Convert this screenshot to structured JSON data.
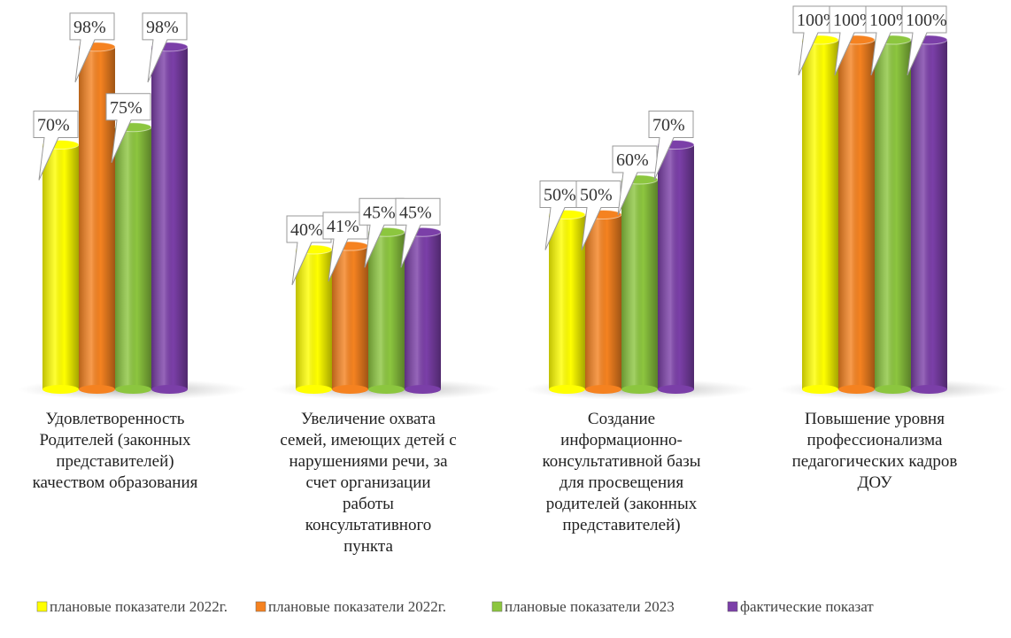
{
  "chart_data": {
    "type": "bar3d",
    "categories": [
      "Удовлетворенность\nРодителей (законных\nпредставителей)\nкачеством образования",
      "Увеличение охвата\nсемей, имеющих детей с\nнарушениями речи, за\nсчет организации\nработы\nконсультативного\nпункта",
      "Создание\nинформационно-\nконсультативной базы\nдля просвещения\nродителей      (законных\nпредставителей)",
      "Повышение уровня\nпрофессионализма\nпедагогических кадров\nДОУ"
    ],
    "series": [
      {
        "name": "плановые показатели 2022г.",
        "color": "#ffff00",
        "values": [
          70,
          40,
          50,
          100
        ],
        "value_labels": [
          "70%",
          "40%",
          "50%",
          "100%"
        ]
      },
      {
        "name": "плановые показатели 2022г.",
        "color": "#f58220",
        "values": [
          98,
          41,
          50,
          100
        ],
        "value_labels": [
          "98%",
          "41%",
          "50%",
          "100%"
        ]
      },
      {
        "name": "плановые показатели 2023",
        "color": "#8cc63f",
        "values": [
          75,
          45,
          60,
          100
        ],
        "value_labels": [
          "75%",
          "45%",
          "60%",
          "100%"
        ]
      },
      {
        "name": "фактические показат",
        "color": "#7b3fa8",
        "values": [
          98,
          45,
          70,
          100
        ],
        "value_labels": [
          "98%",
          "45%",
          "70%",
          "100%"
        ]
      }
    ],
    "ylim": [
      0,
      100
    ],
    "legend": "bottom"
  }
}
